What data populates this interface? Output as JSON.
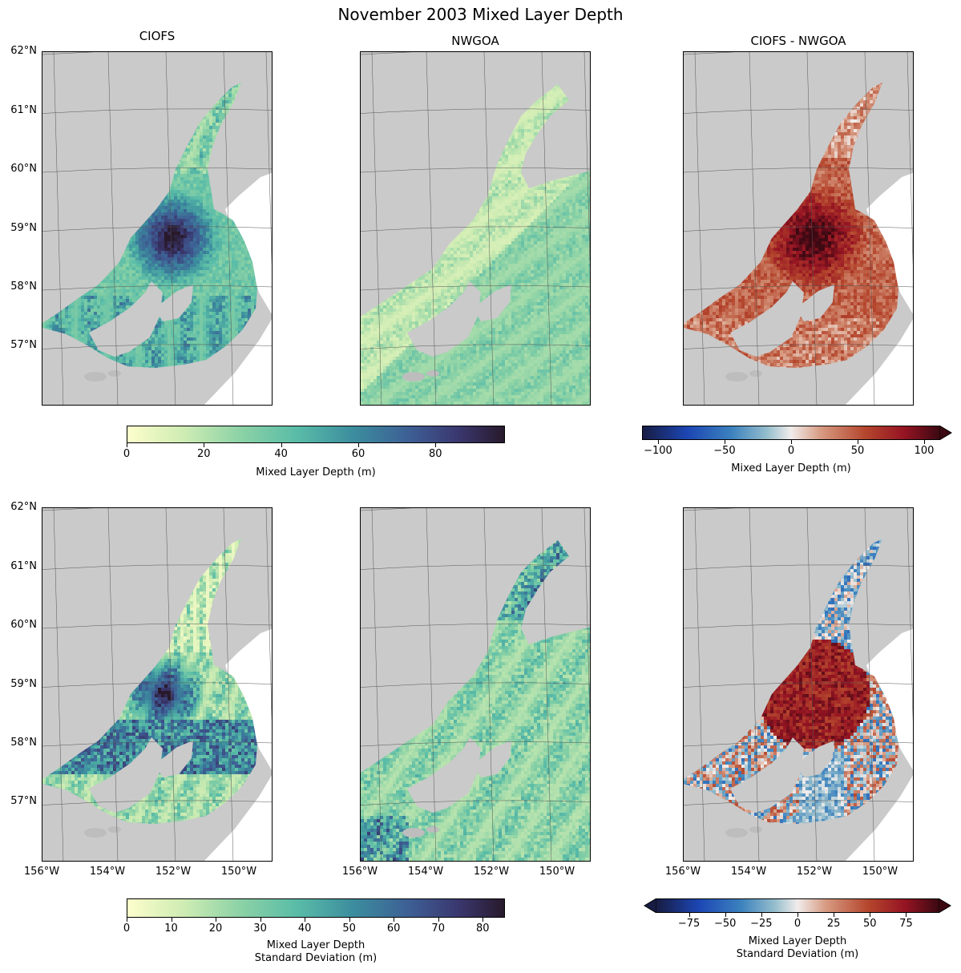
{
  "chart_data": [
    {
      "type": "heatmap",
      "title": "November 2003 Mixed Layer Depth",
      "panels": [
        {
          "id": "ciofs-mean",
          "title": "CIOFS",
          "colormap": "sequential-yellow-green-blue-dark",
          "vmin": 0,
          "vmax": 100
        },
        {
          "id": "nwgoa-mean",
          "title": "NWGOA",
          "colormap": "sequential-yellow-green-blue-dark",
          "vmin": 0,
          "vmax": 100
        },
        {
          "id": "diff-mean",
          "title": "CIOFS - NWGOA",
          "colormap": "diverging-blue-white-red",
          "vmin": -110,
          "vmax": 110
        },
        {
          "id": "ciofs-std",
          "title": "",
          "colormap": "sequential-yellow-green-blue-dark",
          "vmin": 0,
          "vmax": 85
        },
        {
          "id": "nwgoa-std",
          "title": "",
          "colormap": "sequential-yellow-green-blue-dark",
          "vmin": 0,
          "vmax": 85
        },
        {
          "id": "diff-std",
          "title": "",
          "colormap": "diverging-blue-white-red",
          "vmin": -100,
          "vmax": 100
        }
      ],
      "lat_ticks": [
        "62°N",
        "61°N",
        "60°N",
        "59°N",
        "58°N",
        "57°N"
      ],
      "lon_ticks": [
        "156°W",
        "154°W",
        "152°W",
        "150°W"
      ],
      "extent": {
        "lon": [
          -156,
          -149
        ],
        "lat": [
          56,
          62
        ]
      },
      "colorbars": [
        {
          "id": "cb-mean-seq",
          "label": [
            "Mixed Layer Depth (m)"
          ],
          "ticks": [
            "0",
            "20",
            "40",
            "60",
            "80"
          ],
          "tick_values": [
            0,
            20,
            40,
            60,
            80
          ],
          "range": [
            0,
            98
          ],
          "extend": "neither"
        },
        {
          "id": "cb-mean-div",
          "label": [
            "Mixed Layer Depth (m)"
          ],
          "ticks": [
            "−100",
            "−50",
            "0",
            "50",
            "100"
          ],
          "tick_values": [
            -100,
            -50,
            0,
            50,
            100
          ],
          "range": [
            -112,
            112
          ],
          "extend": "max"
        },
        {
          "id": "cb-std-seq",
          "label": [
            "Mixed Layer Depth",
            "Standard Deviation (m)"
          ],
          "ticks": [
            "0",
            "10",
            "20",
            "30",
            "40",
            "50",
            "60",
            "70",
            "80"
          ],
          "tick_values": [
            0,
            10,
            20,
            30,
            40,
            50,
            60,
            70,
            80
          ],
          "range": [
            0,
            85
          ],
          "extend": "neither"
        },
        {
          "id": "cb-std-div",
          "label": [
            "Mixed Layer Depth",
            "Standard Deviation (m)"
          ],
          "ticks": [
            "−75",
            "−50",
            "−25",
            "0",
            "25",
            "50",
            "75"
          ],
          "tick_values": [
            -75,
            -50,
            -25,
            0,
            25,
            50,
            75
          ],
          "range": [
            -98,
            98
          ],
          "extend": "both"
        }
      ],
      "colors": {
        "land": "#cacaca",
        "ocean_blank": "#ffffff"
      }
    }
  ]
}
